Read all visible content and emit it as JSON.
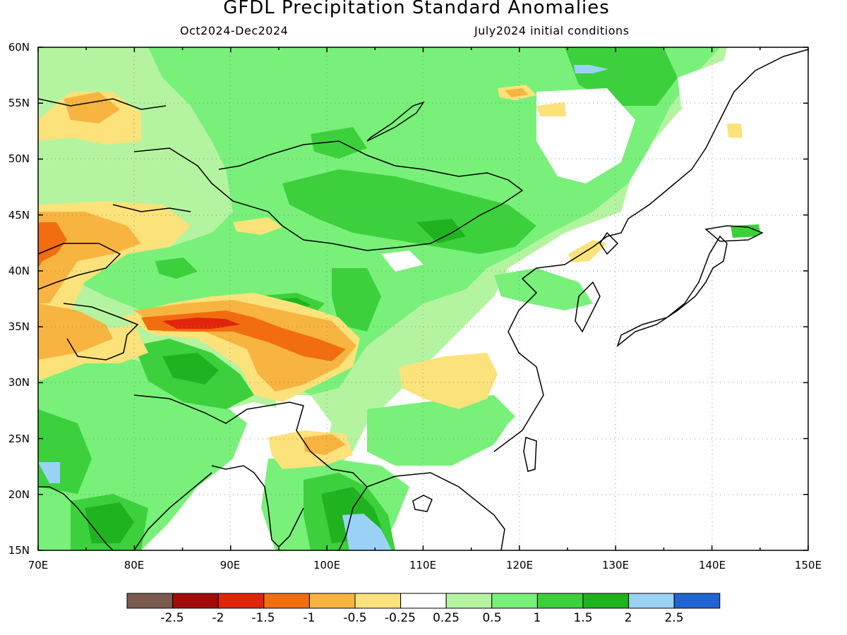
{
  "header": {
    "title": "GFDL Precipitation Standard Anomalies",
    "period": "Oct2024-Dec2024",
    "init": "July2024 initial conditions"
  },
  "map": {
    "lon_range": [
      70,
      150
    ],
    "lat_range": [
      15,
      60
    ],
    "lon_ticks": [
      "70E",
      "80E",
      "90E",
      "100E",
      "110E",
      "120E",
      "130E",
      "140E",
      "150E"
    ],
    "lat_ticks": [
      "15N",
      "20N",
      "25N",
      "30N",
      "35N",
      "40N",
      "45N",
      "50N",
      "55N",
      "60N"
    ],
    "gridlines": "dotted",
    "coastlines": true
  },
  "colorbar": {
    "colors": [
      "#7a5a4d",
      "#a50a0a",
      "#e0250a",
      "#f26d0f",
      "#f8b440",
      "#fbe27a",
      "#ffffff",
      "#b4f4a0",
      "#78f079",
      "#3cd13c",
      "#1fb41f",
      "#9ad2f6",
      "#1f64d2"
    ],
    "labels": [
      "-2.5",
      "-2",
      "-1.5",
      "-1",
      "-0.5",
      "-0.25",
      "0.25",
      "0.5",
      "1",
      "1.5",
      "2",
      "2.5"
    ]
  },
  "colors": {
    "green_light": "#b4f4a0",
    "green": "#78f079",
    "green_mid": "#3cd13c",
    "green_dark": "#1fb41f",
    "blue_light": "#9ad2f6",
    "yellow": "#fbe27a",
    "orange_light": "#f8b440",
    "orange": "#f26d0f",
    "red": "#e0250a"
  }
}
